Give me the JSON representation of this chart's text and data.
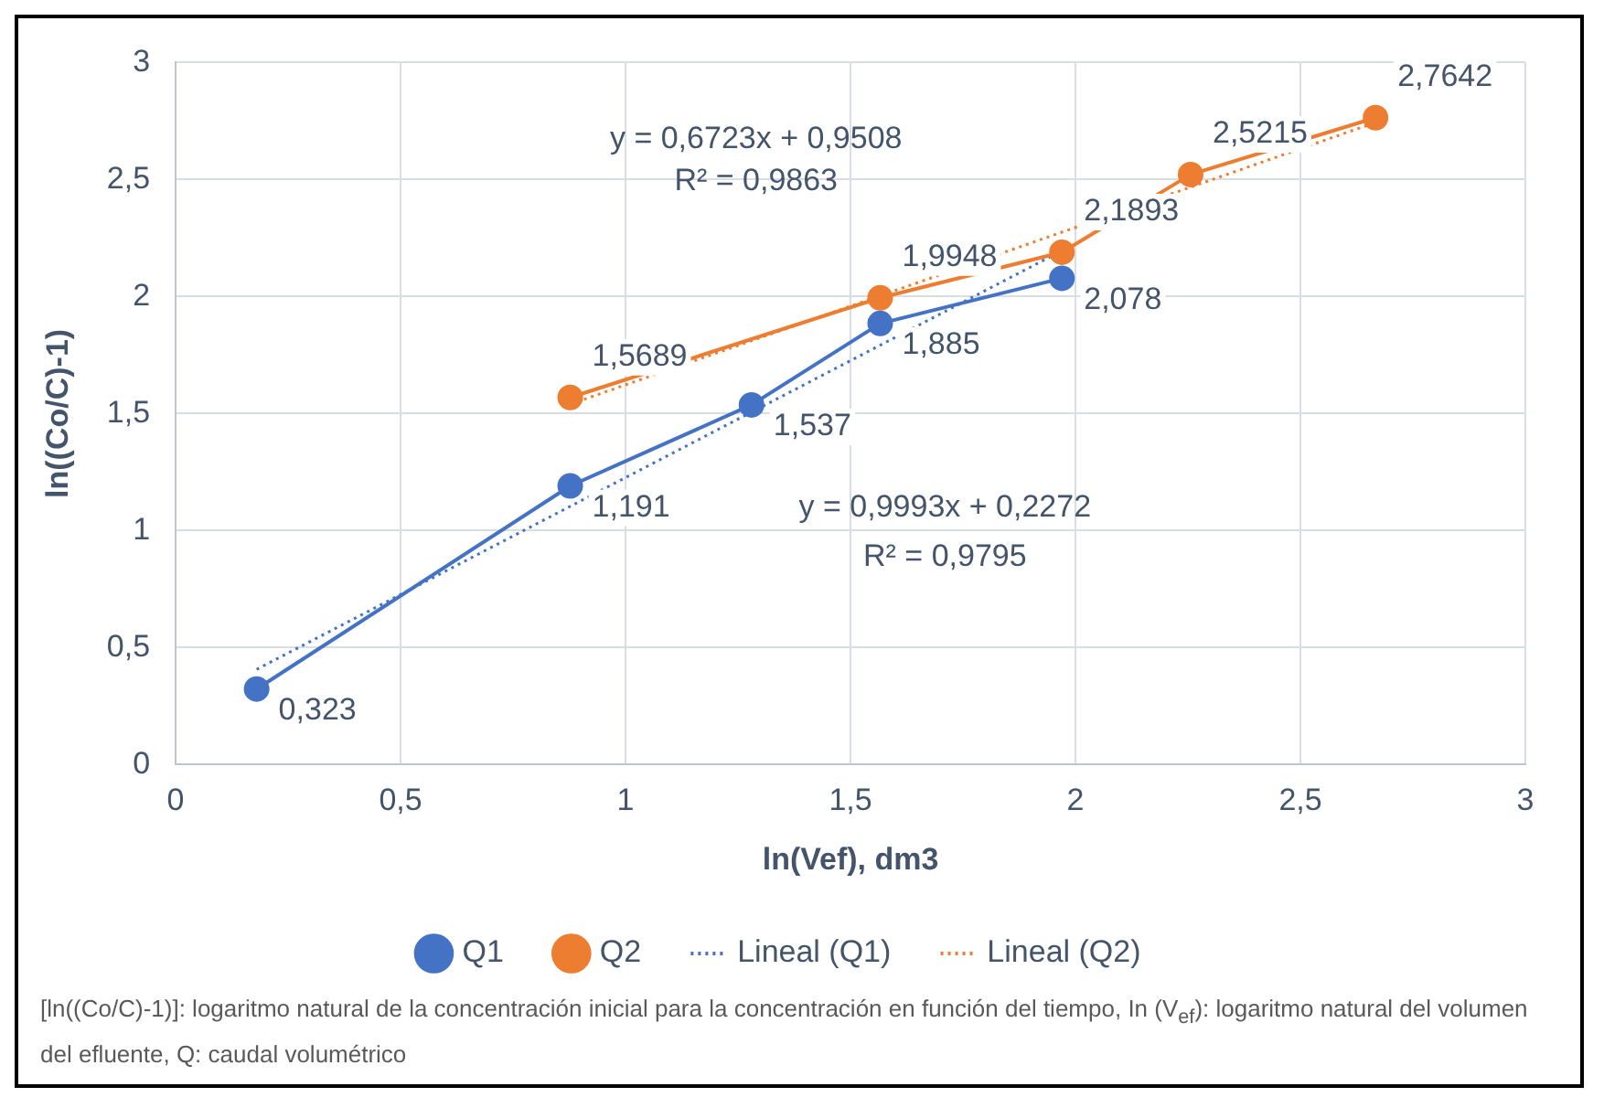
{
  "chart_data": {
    "type": "scatter",
    "xlabel": "ln(Vef), dm3",
    "ylabel": "ln((Co/C)-1)",
    "xlim": [
      0,
      3
    ],
    "xticks": [
      0,
      {
        "value": 0.5,
        "label": "0,5"
      },
      1,
      {
        "value": 1.5,
        "label": "1,5"
      },
      2,
      {
        "value": 2.5,
        "label": "2,5"
      },
      3
    ],
    "ylim": [
      0,
      3
    ],
    "yticks": [
      0,
      {
        "value": 0.5,
        "label": "0,5"
      },
      1,
      {
        "value": 1.5,
        "label": "1,5"
      },
      2,
      {
        "value": 2.5,
        "label": "2,5"
      },
      3
    ],
    "grid": true,
    "legend": "bottom",
    "marker": "circle",
    "line_style": "solid",
    "series": [
      {
        "name": "Q1",
        "type": "line",
        "color": "#4472c4",
        "x": [
          0.18,
          0.877,
          1.28,
          1.566,
          1.97
        ],
        "values": [
          0.323,
          1.191,
          1.537,
          1.885,
          2.078
        ],
        "value_labels": [
          "0,323",
          "1,191",
          "1,537",
          "1,885",
          "2,078"
        ]
      },
      {
        "name": "Q2",
        "type": "line",
        "color": "#ed7d31",
        "x": [
          0.877,
          1.566,
          1.97,
          2.256,
          2.667
        ],
        "values": [
          1.5689,
          1.9948,
          2.1893,
          2.5215,
          2.7642
        ],
        "value_labels": [
          "1,5689",
          "1,9948",
          "2,1893",
          "2,5215",
          "2,7642"
        ]
      },
      {
        "name": "Lineal (Q1)",
        "type": "line",
        "color": "#4472c4",
        "line_style": "dotted",
        "marker": "none",
        "x": [
          0.18,
          1.97
        ],
        "values": [
          0.407,
          2.196
        ]
      },
      {
        "name": "Lineal (Q2)",
        "type": "line",
        "color": "#ed7d31",
        "line_style": "dotted",
        "marker": "none",
        "x": [
          0.877,
          2.667
        ],
        "values": [
          1.54,
          2.744
        ]
      }
    ],
    "annotations": [
      "y = 0,6723x + 0,9508",
      "R² = 0,9863",
      "y = 0,9993x + 0,2272",
      "R² = 0,9795",
      "[ln((Co/C)-1)]: logaritmo natural de la concentración inicial para la concentración en función del tiempo, In (V$_{ef}$): logaritmo natural del volumen del efluente, Q: caudal volumétrico"
    ]
  }
}
